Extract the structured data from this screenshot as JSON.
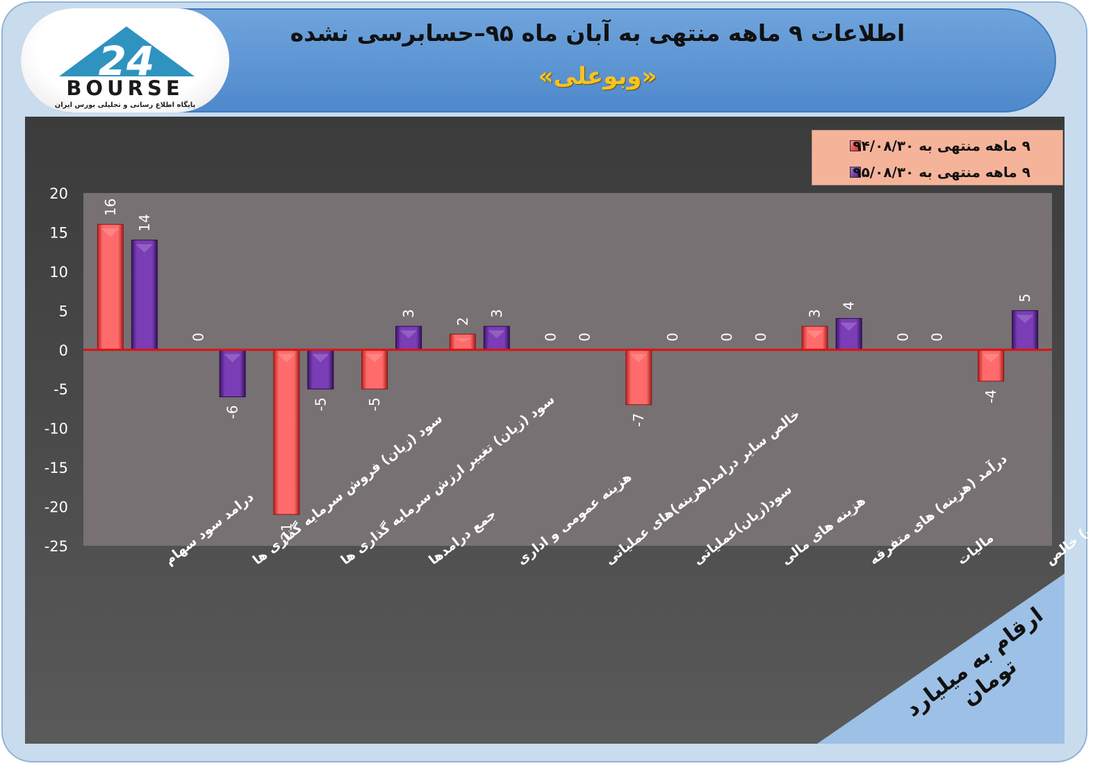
{
  "header": {
    "title": "اطلاعات ۹ ماهه منتهی به آبان ماه ۹۵–حسابرسی نشده",
    "subtitle": "«وبوعلی»",
    "logo_text": "BOURSE",
    "logo_mark": "24",
    "logo_subtitle": "پایگاه اطلاع رسانی و تحلیلی بورس ایران"
  },
  "badge": {
    "text": "ارقام به میلیارد تومان"
  },
  "colors": {
    "series1": "#e84545",
    "series2": "#6a2d9c",
    "zero_line": "#e01010"
  },
  "chart_data": {
    "type": "bar",
    "categories": [
      "درامد سود سهام",
      "سود (زیان) فروش سرمایه گذاری ها",
      "سود (زیان) تغییر ارزش سرمایه گذاری ها",
      "جمع درامدها",
      "هزینه عمومی و اداری",
      "خالص سایر درامد(هزینه)های عملیاتی",
      "سود(زیان)عملیاتی",
      "هزینه های مالی",
      "درآمد (هزینه) های متفرقه",
      "مالیات",
      "سود(زیان) خالص"
    ],
    "series": [
      {
        "name": "۹ ماهه منتهی به ۹۴/۰۸/۳۰",
        "values": [
          16,
          0,
          -21,
          -5,
          2,
          0,
          -7,
          0,
          3,
          0,
          -4
        ]
      },
      {
        "name": "۹ ماهه منتهی به ۹۵/۰۸/۳۰",
        "values": [
          14,
          -6,
          -5,
          3,
          3,
          0,
          0,
          0,
          4,
          0,
          5
        ]
      }
    ],
    "ylim": [
      -25,
      20
    ],
    "yticks": [
      20,
      15,
      10,
      5,
      0,
      -5,
      -10,
      -15,
      -20,
      -25
    ],
    "legend": "top-right",
    "grid": false
  }
}
